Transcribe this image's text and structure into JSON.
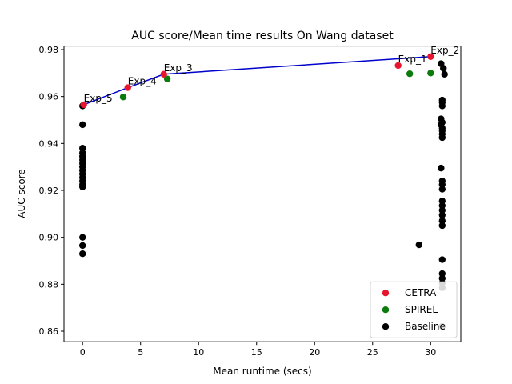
{
  "chart_data": {
    "type": "scatter",
    "title": "AUC score/Mean time results On Wang dataset",
    "xlabel": "Mean runtime (secs)",
    "ylabel": "AUC score",
    "xlim": [
      -1.6,
      32.6
    ],
    "ylim": [
      0.8555,
      0.9815
    ],
    "x_ticks": [
      0,
      5,
      10,
      15,
      20,
      25,
      30
    ],
    "y_ticks": [
      0.86,
      0.88,
      0.9,
      0.92,
      0.94,
      0.96,
      0.98
    ],
    "y_tick_labels": [
      "0.86",
      "0.88",
      "0.90",
      "0.92",
      "0.94",
      "0.96",
      "0.98"
    ],
    "grid": false,
    "legend_position": "lower-right",
    "frontier": {
      "color": "#0000cc",
      "points": [
        [
          0.1,
          0.9565
        ],
        [
          3.9,
          0.9638
        ],
        [
          7.0,
          0.9695
        ],
        [
          30.0,
          0.977
        ]
      ]
    },
    "series": [
      {
        "name": "CETRA",
        "color": "#e8152e",
        "points": [
          [
            0.1,
            0.9565
          ],
          [
            3.9,
            0.9638
          ],
          [
            7.0,
            0.9695
          ],
          [
            27.2,
            0.9732
          ],
          [
            30.0,
            0.977
          ]
        ]
      },
      {
        "name": "SPIREL",
        "color": "#0c7a0c",
        "points": [
          [
            3.5,
            0.9598
          ],
          [
            7.3,
            0.9675
          ],
          [
            28.2,
            0.9697
          ],
          [
            30.0,
            0.97
          ]
        ]
      },
      {
        "name": "Baseline",
        "color": "#000000",
        "points": [
          [
            0.0,
            0.956
          ],
          [
            0.0,
            0.948
          ],
          [
            0.0,
            0.938
          ],
          [
            0.0,
            0.936
          ],
          [
            0.0,
            0.9345
          ],
          [
            0.0,
            0.933
          ],
          [
            0.0,
            0.9315
          ],
          [
            0.0,
            0.93
          ],
          [
            0.0,
            0.9285
          ],
          [
            0.0,
            0.927
          ],
          [
            0.0,
            0.9255
          ],
          [
            0.0,
            0.924
          ],
          [
            0.0,
            0.9225
          ],
          [
            0.0,
            0.9215
          ],
          [
            0.0,
            0.9
          ],
          [
            0.0,
            0.8965
          ],
          [
            0.0,
            0.893
          ],
          [
            29.0,
            0.8968
          ],
          [
            30.9,
            0.974
          ],
          [
            31.1,
            0.972
          ],
          [
            31.2,
            0.9695
          ],
          [
            31.0,
            0.9585
          ],
          [
            31.0,
            0.9575
          ],
          [
            31.0,
            0.956
          ],
          [
            30.9,
            0.9505
          ],
          [
            31.0,
            0.949
          ],
          [
            30.9,
            0.948
          ],
          [
            31.0,
            0.9465
          ],
          [
            31.0,
            0.9455
          ],
          [
            31.0,
            0.944
          ],
          [
            31.0,
            0.9425
          ],
          [
            30.9,
            0.9295
          ],
          [
            31.0,
            0.924
          ],
          [
            31.0,
            0.9225
          ],
          [
            31.0,
            0.9205
          ],
          [
            31.0,
            0.9155
          ],
          [
            31.0,
            0.9135
          ],
          [
            31.0,
            0.9115
          ],
          [
            31.0,
            0.9095
          ],
          [
            31.0,
            0.907
          ],
          [
            31.0,
            0.905
          ],
          [
            31.0,
            0.8905
          ],
          [
            31.0,
            0.8845
          ],
          [
            31.0,
            0.8825
          ],
          [
            31.0,
            0.8805
          ],
          [
            31.0,
            0.8785
          ],
          [
            31.0,
            0.862
          ]
        ]
      }
    ],
    "annotations": [
      {
        "text": "Exp_5",
        "x": 0.1,
        "y": 0.9565
      },
      {
        "text": "Exp_4",
        "x": 3.9,
        "y": 0.9638
      },
      {
        "text": "Exp_3",
        "x": 7.0,
        "y": 0.9695
      },
      {
        "text": "Exp_1",
        "x": 27.2,
        "y": 0.9732
      },
      {
        "text": "Exp_2",
        "x": 30.0,
        "y": 0.977
      }
    ]
  }
}
